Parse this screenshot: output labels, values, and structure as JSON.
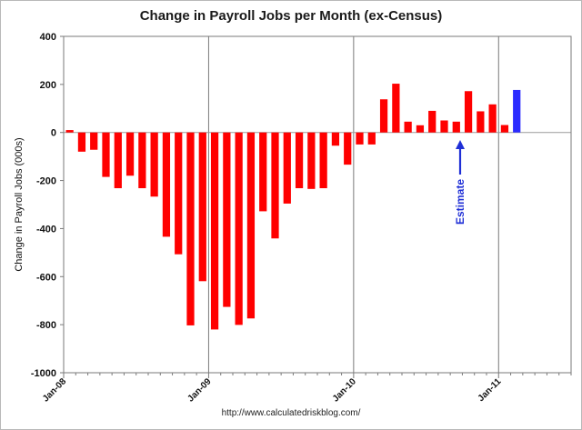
{
  "chart_data": {
    "type": "bar",
    "title": "Change in Payroll Jobs per Month (ex-Census)",
    "ylabel": "Change in Payroll Jobs (000s)",
    "xlabel": "",
    "ylim": [
      -1000,
      400
    ],
    "yticks": [
      400,
      200,
      0,
      -200,
      -400,
      -600,
      -800,
      -1000
    ],
    "x_tick_labels": [
      "Jan-08",
      "Jan-09",
      "Jan-10",
      "Jan-11"
    ],
    "grid": "vertical-at-year-boundaries",
    "colors": {
      "actual": "#ff0000",
      "estimate": "#2b2bff",
      "annotation": "#1f2fd6"
    },
    "series": [
      {
        "values": [
          10,
          -80,
          -72,
          -185,
          -232,
          -180,
          -232,
          -267,
          -434,
          -507,
          -803,
          -619,
          -820,
          -726,
          -801,
          -774,
          -328,
          -441,
          -296,
          -232,
          -235,
          -232,
          -55,
          -134,
          -50,
          -50,
          138,
          203,
          45,
          30,
          90,
          50,
          45,
          172,
          88,
          117,
          31
        ]
      },
      {
        "values": [
          null,
          null,
          null,
          null,
          null,
          null,
          null,
          null,
          null,
          null,
          null,
          null,
          null,
          null,
          null,
          null,
          null,
          null,
          null,
          null,
          null,
          null,
          null,
          null,
          null,
          null,
          null,
          null,
          null,
          null,
          null,
          null,
          null,
          null,
          null,
          null,
          null,
          177
        ]
      }
    ],
    "annotations": [
      {
        "text": "Estimate"
      }
    ],
    "source": "http://www.calculatedriskblog.com/"
  }
}
